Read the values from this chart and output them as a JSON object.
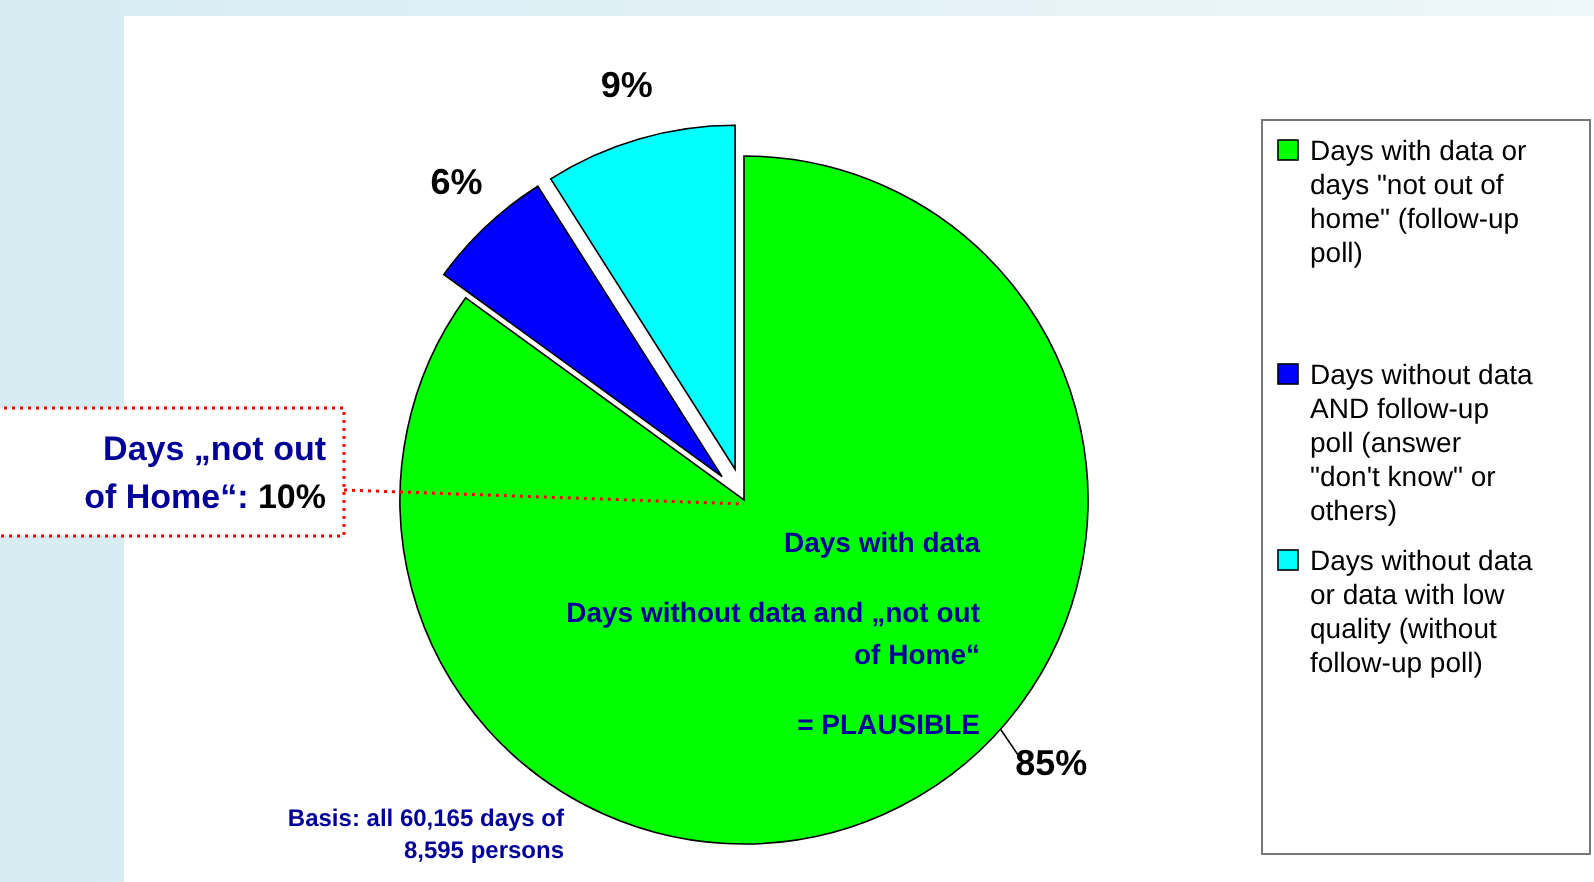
{
  "chart_data": {
    "type": "pie",
    "categories": [
      "Days with data or days \"not out of home\" (follow-up poll)",
      "Days without data AND follow-up poll (answer \"don't know\" or others)",
      "Days without data or data with low quality (without follow-up poll)"
    ],
    "values": [
      85,
      6,
      9
    ],
    "colors": [
      "#00ff00",
      "#0000ff",
      "#00ffff"
    ],
    "value_labels": [
      "85%",
      "6%",
      "9%"
    ],
    "legend": "right",
    "annotations": [
      "Days „not out of Home“: 10%",
      "Days with data",
      "Days without data and „not out of Home“",
      "= PLAUSIBLE",
      "Basis: all 60,165 days of 8,595 persons"
    ]
  }
}
